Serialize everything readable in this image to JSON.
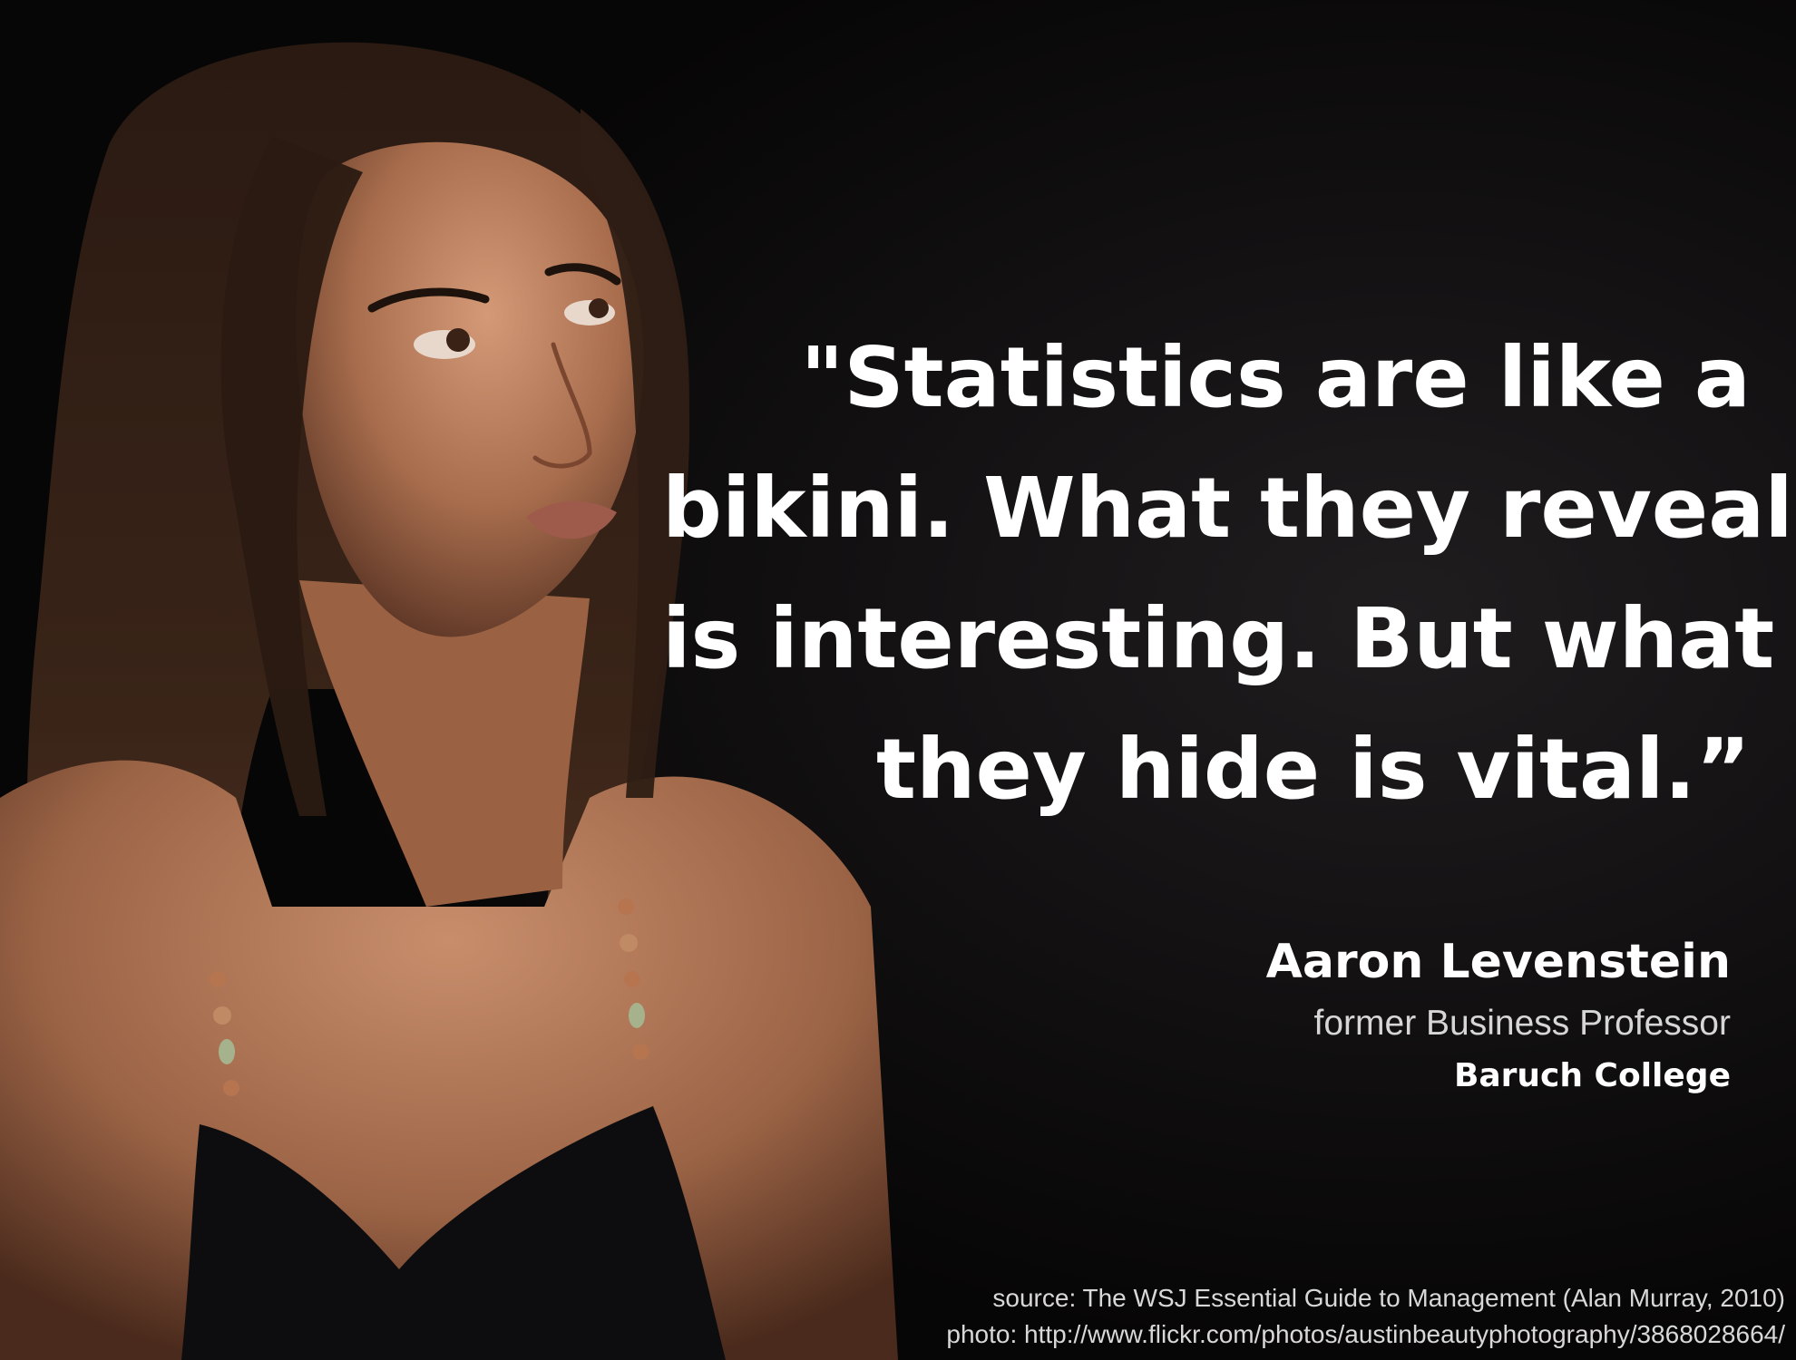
{
  "quote": {
    "lines": [
      "\"Statistics are like a",
      "bikini. What they reveal",
      "is interesting. But what",
      "they hide is vital.”"
    ]
  },
  "attribution": {
    "name": "Aaron Levenstein",
    "title": "former Business Professor",
    "organization": "Baruch College"
  },
  "credits": {
    "source": "source: The WSJ Essential Guide to Management (Alan Murray, 2010)",
    "photo": "photo: http://www.flickr.com/photos/austinbeautyphotography/3868028664/"
  },
  "colors": {
    "background": "#0c0b0b",
    "quote_text": "#ffffff",
    "secondary_text": "#d6d6d6",
    "skin": "#b47a5a",
    "hair": "#2a1a12"
  }
}
